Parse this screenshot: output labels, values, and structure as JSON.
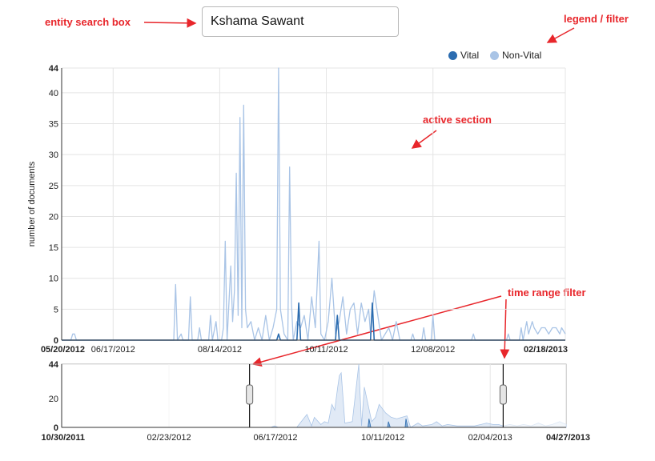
{
  "search": {
    "value": "Kshama Sawant"
  },
  "annotations": {
    "search_box": "entity search box",
    "legend_filter": "legend / filter",
    "active_section": "active section",
    "time_range_filter": "time range filter"
  },
  "colors": {
    "vital": "#2b6cb0",
    "non_vital": "#a9c4e6",
    "annotation": "#e8262b"
  },
  "chart_data": [
    {
      "type": "line",
      "ylabel": "number of documents",
      "ylim": [
        0,
        44
      ],
      "yticks": [
        "0",
        "5",
        "10",
        "15",
        "20",
        "25",
        "30",
        "35",
        "40",
        "44"
      ],
      "xticks": [
        "05/20/2012",
        "06/17/2012",
        "08/14/2012",
        "10/11/2012",
        "12/08/2012",
        "02/18/2013"
      ],
      "x_start": "05/20/2012",
      "x_end": "02/18/2013",
      "grid": true,
      "legend": {
        "position": "top-right"
      },
      "series": [
        {
          "name": "Non-Vital",
          "points": [
            [
              "2012-05-20",
              0
            ],
            [
              "2012-05-25",
              0
            ],
            [
              "2012-05-26",
              1
            ],
            [
              "2012-05-27",
              1
            ],
            [
              "2012-05-28",
              0
            ],
            [
              "2012-07-20",
              0
            ],
            [
              "2012-07-21",
              9
            ],
            [
              "2012-07-22",
              0
            ],
            [
              "2012-07-24",
              1
            ],
            [
              "2012-07-25",
              0
            ],
            [
              "2012-07-28",
              0
            ],
            [
              "2012-07-29",
              7
            ],
            [
              "2012-07-30",
              0
            ],
            [
              "2012-08-02",
              0
            ],
            [
              "2012-08-03",
              2
            ],
            [
              "2012-08-04",
              0
            ],
            [
              "2012-08-08",
              0
            ],
            [
              "2012-08-09",
              4
            ],
            [
              "2012-08-10",
              0
            ],
            [
              "2012-08-12",
              3
            ],
            [
              "2012-08-13",
              0
            ],
            [
              "2012-08-15",
              0
            ],
            [
              "2012-08-16",
              2
            ],
            [
              "2012-08-17",
              16
            ],
            [
              "2012-08-18",
              0
            ],
            [
              "2012-08-20",
              12
            ],
            [
              "2012-08-21",
              3
            ],
            [
              "2012-08-22",
              8
            ],
            [
              "2012-08-23",
              27
            ],
            [
              "2012-08-24",
              4
            ],
            [
              "2012-08-25",
              36
            ],
            [
              "2012-08-26",
              2
            ],
            [
              "2012-08-27",
              38
            ],
            [
              "2012-08-28",
              5
            ],
            [
              "2012-08-29",
              2
            ],
            [
              "2012-08-31",
              3
            ],
            [
              "2012-09-02",
              0
            ],
            [
              "2012-09-04",
              2
            ],
            [
              "2012-09-06",
              0
            ],
            [
              "2012-09-08",
              4
            ],
            [
              "2012-09-10",
              0
            ],
            [
              "2012-09-12",
              2
            ],
            [
              "2012-09-14",
              5
            ],
            [
              "2012-09-15",
              44
            ],
            [
              "2012-09-16",
              5
            ],
            [
              "2012-09-18",
              1
            ],
            [
              "2012-09-20",
              0
            ],
            [
              "2012-09-21",
              28
            ],
            [
              "2012-09-22",
              6
            ],
            [
              "2012-09-23",
              0
            ],
            [
              "2012-09-25",
              3
            ],
            [
              "2012-09-27",
              2
            ],
            [
              "2012-09-29",
              4
            ],
            [
              "2012-10-01",
              0
            ],
            [
              "2012-10-03",
              7
            ],
            [
              "2012-10-05",
              2
            ],
            [
              "2012-10-07",
              16
            ],
            [
              "2012-10-08",
              1
            ],
            [
              "2012-10-10",
              0
            ],
            [
              "2012-10-12",
              3
            ],
            [
              "2012-10-14",
              10
            ],
            [
              "2012-10-16",
              1
            ],
            [
              "2012-10-18",
              3
            ],
            [
              "2012-10-20",
              7
            ],
            [
              "2012-10-22",
              1
            ],
            [
              "2012-10-24",
              5
            ],
            [
              "2012-10-26",
              6
            ],
            [
              "2012-10-28",
              1
            ],
            [
              "2012-10-30",
              6
            ],
            [
              "2012-11-01",
              3
            ],
            [
              "2012-11-03",
              5
            ],
            [
              "2012-11-04",
              1
            ],
            [
              "2012-11-06",
              8
            ],
            [
              "2012-11-08",
              4
            ],
            [
              "2012-11-10",
              0
            ],
            [
              "2012-11-12",
              1
            ],
            [
              "2012-11-14",
              2
            ],
            [
              "2012-11-16",
              0
            ],
            [
              "2012-11-18",
              3
            ],
            [
              "2012-11-20",
              0
            ],
            [
              "2012-11-26",
              0
            ],
            [
              "2012-11-27",
              1
            ],
            [
              "2012-11-28",
              0
            ],
            [
              "2012-12-02",
              0
            ],
            [
              "2012-12-03",
              2
            ],
            [
              "2012-12-04",
              0
            ],
            [
              "2012-12-07",
              0
            ],
            [
              "2012-12-08",
              4
            ],
            [
              "2012-12-09",
              0
            ],
            [
              "2012-12-29",
              0
            ],
            [
              "2012-12-30",
              1
            ],
            [
              "2012-12-31",
              0
            ],
            [
              "2013-01-17",
              0
            ],
            [
              "2013-01-18",
              1
            ],
            [
              "2013-01-19",
              0
            ],
            [
              "2013-01-24",
              0
            ],
            [
              "2013-01-25",
              2
            ],
            [
              "2013-01-26",
              0
            ],
            [
              "2013-01-28",
              3
            ],
            [
              "2013-01-29",
              1
            ],
            [
              "2013-01-31",
              3
            ],
            [
              "2013-02-01",
              2
            ],
            [
              "2013-02-03",
              1
            ],
            [
              "2013-02-05",
              2
            ],
            [
              "2013-02-07",
              2
            ],
            [
              "2013-02-09",
              1
            ],
            [
              "2013-02-11",
              2
            ],
            [
              "2013-02-13",
              2
            ],
            [
              "2013-02-15",
              1
            ],
            [
              "2013-02-16",
              2
            ],
            [
              "2013-02-18",
              1
            ]
          ]
        },
        {
          "name": "Vital",
          "points": [
            [
              "2012-05-20",
              0
            ],
            [
              "2012-09-14",
              0
            ],
            [
              "2012-09-15",
              1
            ],
            [
              "2012-09-16",
              0
            ],
            [
              "2012-09-25",
              0
            ],
            [
              "2012-09-26",
              6
            ],
            [
              "2012-09-27",
              0
            ],
            [
              "2012-10-16",
              0
            ],
            [
              "2012-10-17",
              4
            ],
            [
              "2012-10-18",
              0
            ],
            [
              "2012-11-04",
              0
            ],
            [
              "2012-11-05",
              6
            ],
            [
              "2012-11-06",
              0
            ],
            [
              "2013-02-18",
              0
            ]
          ]
        }
      ]
    },
    {
      "type": "area",
      "ylim": [
        0,
        44
      ],
      "yticks": [
        "0",
        "20",
        "44"
      ],
      "xticks": [
        "10/30/2011",
        "02/23/2012",
        "06/17/2012",
        "10/11/2012",
        "02/04/2013",
        "04/27/2013"
      ],
      "x_start": "10/30/2011",
      "x_end": "04/27/2013",
      "selected_range": [
        "05/20/2012",
        "02/18/2013"
      ],
      "series": [
        {
          "name": "Non-Vital",
          "points": [
            [
              "2011-10-30",
              0
            ],
            [
              "2012-06-12",
              0
            ],
            [
              "2012-06-16",
              1
            ],
            [
              "2012-06-20",
              0
            ],
            [
              "2012-07-10",
              0
            ],
            [
              "2012-07-21",
              9
            ],
            [
              "2012-07-26",
              1
            ],
            [
              "2012-07-29",
              7
            ],
            [
              "2012-08-05",
              2
            ],
            [
              "2012-08-09",
              4
            ],
            [
              "2012-08-13",
              3
            ],
            [
              "2012-08-17",
              16
            ],
            [
              "2012-08-20",
              12
            ],
            [
              "2012-08-23",
              27
            ],
            [
              "2012-08-25",
              36
            ],
            [
              "2012-08-27",
              38
            ],
            [
              "2012-08-31",
              3
            ],
            [
              "2012-09-08",
              4
            ],
            [
              "2012-09-15",
              44
            ],
            [
              "2012-09-18",
              1
            ],
            [
              "2012-09-21",
              28
            ],
            [
              "2012-09-29",
              4
            ],
            [
              "2012-10-03",
              7
            ],
            [
              "2012-10-07",
              16
            ],
            [
              "2012-10-14",
              10
            ],
            [
              "2012-10-20",
              7
            ],
            [
              "2012-10-26",
              6
            ],
            [
              "2012-11-06",
              8
            ],
            [
              "2012-11-10",
              0
            ],
            [
              "2012-11-18",
              3
            ],
            [
              "2012-11-23",
              1
            ],
            [
              "2012-12-03",
              2
            ],
            [
              "2012-12-08",
              4
            ],
            [
              "2012-12-14",
              1
            ],
            [
              "2012-12-20",
              2
            ],
            [
              "2012-12-30",
              1
            ],
            [
              "2013-01-08",
              1
            ],
            [
              "2013-01-18",
              1
            ],
            [
              "2013-01-25",
              2
            ],
            [
              "2013-01-31",
              3
            ],
            [
              "2013-02-07",
              2
            ],
            [
              "2013-02-13",
              2
            ],
            [
              "2013-02-18",
              1
            ],
            [
              "2013-02-25",
              2
            ],
            [
              "2013-03-05",
              1
            ],
            [
              "2013-03-12",
              2
            ],
            [
              "2013-03-20",
              1
            ],
            [
              "2013-03-28",
              3
            ],
            [
              "2013-04-05",
              1
            ],
            [
              "2013-04-12",
              2
            ],
            [
              "2013-04-20",
              4
            ],
            [
              "2013-04-27",
              2
            ]
          ]
        },
        {
          "name": "Vital",
          "points": [
            [
              "2011-10-30",
              0
            ],
            [
              "2012-09-25",
              0
            ],
            [
              "2012-09-26",
              6
            ],
            [
              "2012-09-28",
              0
            ],
            [
              "2012-10-16",
              0
            ],
            [
              "2012-10-17",
              4
            ],
            [
              "2012-10-19",
              0
            ],
            [
              "2012-11-04",
              0
            ],
            [
              "2012-11-05",
              6
            ],
            [
              "2012-11-07",
              0
            ],
            [
              "2013-04-27",
              0
            ]
          ]
        }
      ]
    }
  ]
}
